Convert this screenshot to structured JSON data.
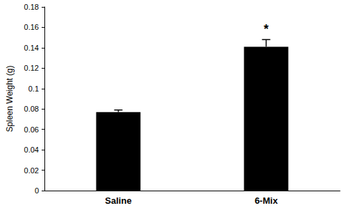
{
  "chart_data": {
    "type": "bar",
    "y_label": "Spleen Weight (g)",
    "categories": [
      "Saline",
      "6-Mix"
    ],
    "values": [
      0.077,
      0.141
    ],
    "errors": [
      0.002,
      0.007
    ],
    "color": "#000000",
    "ylim": [
      0,
      0.18
    ],
    "yticks": [
      0,
      0.02,
      0.04,
      0.06,
      0.08,
      0.1,
      0.12,
      0.14,
      0.16,
      0.18
    ],
    "grid": false,
    "annotations": [
      {
        "text": "*",
        "category": "6-Mix"
      }
    ]
  }
}
